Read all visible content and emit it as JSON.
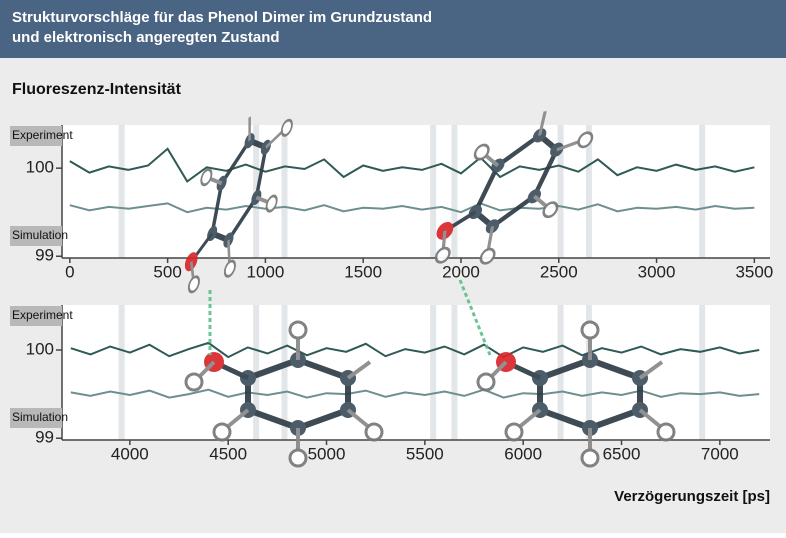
{
  "title": [
    "Strukturvorschläge für das Phenol Dimer im Grundzustand",
    "und elektronisch angeregten Zustand"
  ],
  "ylabel": "Fluoreszenz-Intensität",
  "xlabel": "Verzögerungszeit [ps]",
  "chart_data": [
    {
      "type": "line",
      "x": [
        0,
        100,
        200,
        300,
        400,
        500,
        600,
        700,
        800,
        900,
        1000,
        1100,
        1200,
        1300,
        1400,
        1500,
        1600,
        1700,
        1800,
        1900,
        2000,
        2100,
        2200,
        2300,
        2400,
        2500,
        2600,
        2700,
        2800,
        2900,
        3000,
        3100,
        3200,
        3300,
        3400,
        3500
      ],
      "series": [
        {
          "name": "Experiment",
          "color": "#2f5a55",
          "values": [
            100.08,
            99.95,
            100.02,
            99.98,
            100.03,
            100.22,
            99.85,
            100.01,
            99.97,
            100.04,
            99.96,
            100.02,
            99.99,
            100.1,
            99.9,
            100.03,
            99.97,
            100.01,
            99.98,
            100.05,
            99.94,
            100.12,
            99.9,
            100.02,
            99.98,
            100.03,
            99.96,
            100.1,
            99.92,
            100.01,
            99.97,
            100.04,
            99.98,
            100.02,
            99.96,
            100.01
          ]
        },
        {
          "name": "Simulation",
          "color": "#6e8f8f",
          "values": [
            99.58,
            99.52,
            99.56,
            99.54,
            99.57,
            99.6,
            99.5,
            99.55,
            99.53,
            99.57,
            99.54,
            99.56,
            99.52,
            99.58,
            99.51,
            99.55,
            99.54,
            99.57,
            99.53,
            99.56,
            99.5,
            99.6,
            99.52,
            99.55,
            99.54,
            99.57,
            99.53,
            99.59,
            99.51,
            99.55,
            99.54,
            99.56,
            99.53,
            99.57,
            99.54,
            99.55
          ]
        }
      ],
      "xlim": [
        -40,
        3580
      ],
      "ylim": [
        98.98,
        100.49
      ],
      "xticks": [
        0,
        500,
        1000,
        1500,
        2000,
        2500,
        3000,
        3500
      ],
      "yticks": [
        99,
        100
      ]
    },
    {
      "type": "line",
      "x": [
        3700,
        3800,
        3900,
        4000,
        4100,
        4200,
        4300,
        4400,
        4500,
        4600,
        4700,
        4800,
        4900,
        5000,
        5100,
        5200,
        5300,
        5400,
        5500,
        5600,
        5700,
        5800,
        5900,
        6000,
        6100,
        6200,
        6300,
        6400,
        6500,
        6600,
        6700,
        6800,
        6900,
        7000,
        7100,
        7200
      ],
      "series": [
        {
          "name": "Experiment",
          "color": "#2f5a55",
          "values": [
            100.02,
            99.95,
            100.04,
            99.97,
            100.06,
            99.93,
            100.01,
            100.08,
            99.92,
            100.03,
            99.96,
            100.05,
            99.94,
            100.02,
            99.98,
            100.07,
            99.93,
            100.01,
            99.97,
            100.04,
            99.95,
            100.06,
            99.92,
            100.03,
            99.98,
            100.05,
            99.94,
            100.02,
            99.97,
            100.04,
            99.95,
            100.01,
            99.98,
            100.03,
            99.96,
            100.0
          ]
        },
        {
          "name": "Simulation",
          "color": "#6e8f8f",
          "values": [
            99.52,
            99.48,
            99.53,
            99.49,
            99.54,
            99.46,
            99.5,
            99.55,
            99.47,
            99.52,
            99.49,
            99.53,
            99.46,
            99.51,
            99.5,
            99.54,
            99.47,
            99.52,
            99.49,
            99.53,
            99.48,
            99.55,
            99.46,
            99.51,
            99.5,
            99.53,
            99.48,
            99.52,
            99.49,
            99.54,
            99.47,
            99.51,
            99.5,
            99.52,
            99.48,
            99.5
          ]
        }
      ],
      "xlim": [
        3655,
        7255
      ],
      "ylim": [
        98.98,
        100.51
      ],
      "xticks": [
        4000,
        4500,
        5000,
        5500,
        6000,
        6500,
        7000
      ],
      "yticks": [
        99,
        100
      ]
    }
  ]
}
